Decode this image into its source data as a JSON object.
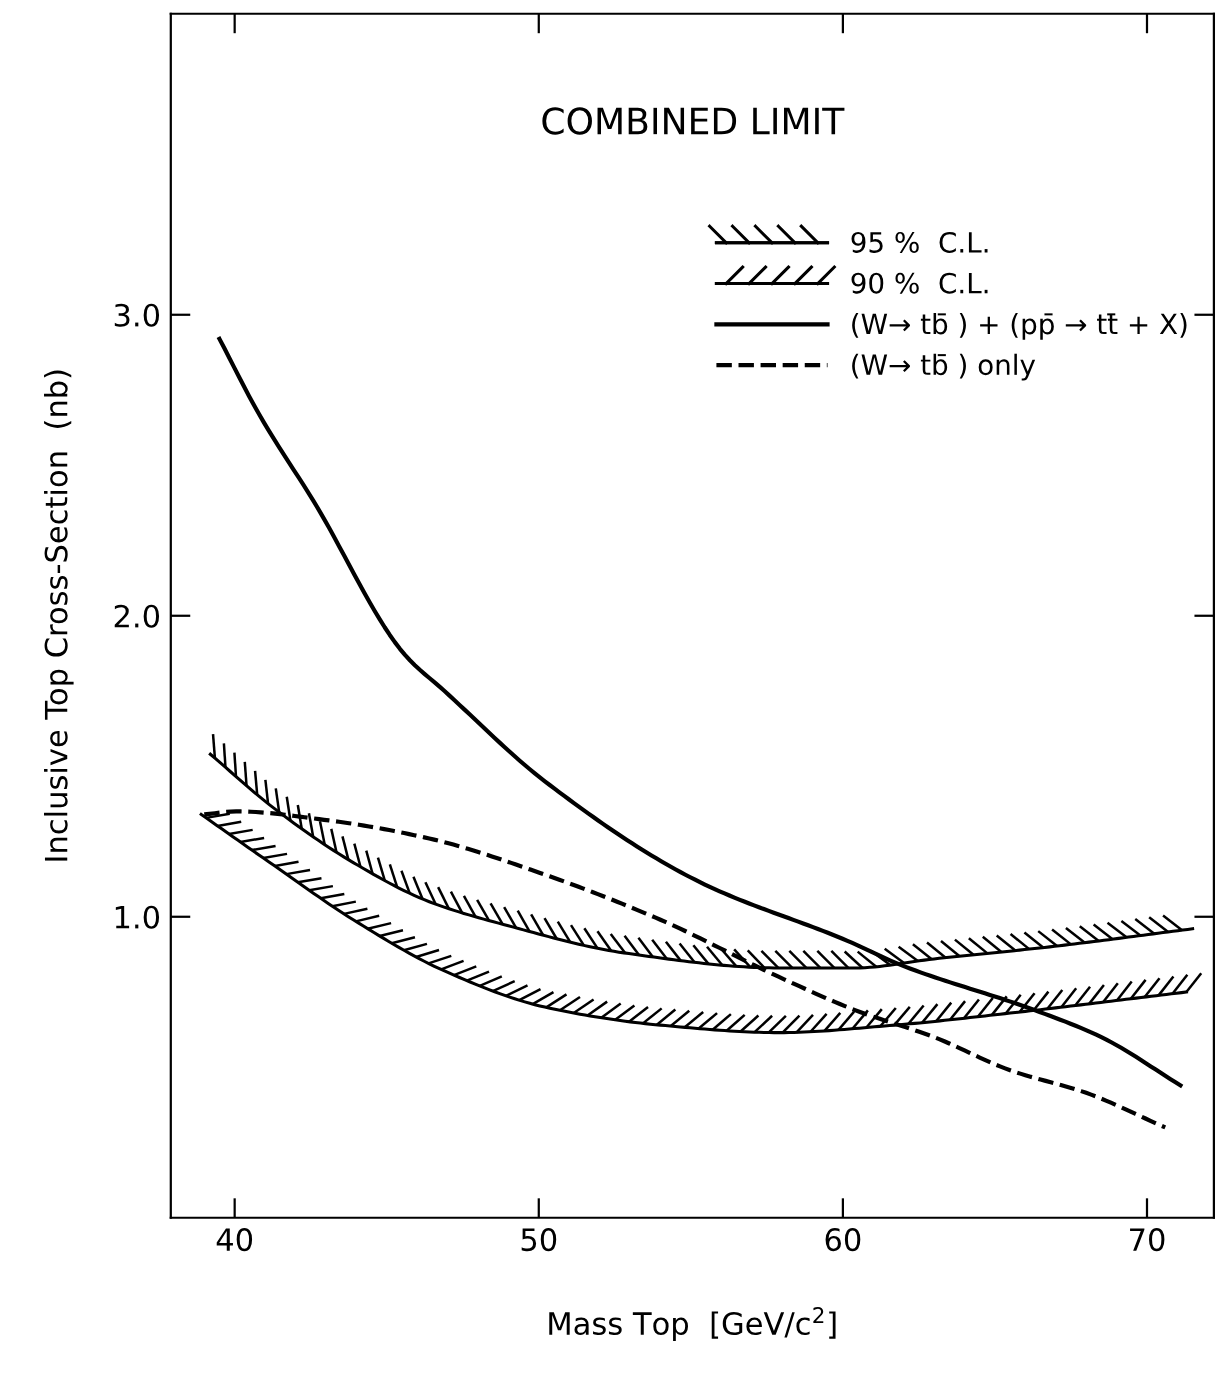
{
  "chart_data": {
    "type": "line",
    "title": "COMBINED LIMIT",
    "xlabel": "Mass Top  [GeV/c$^{2}$]",
    "ylabel": "Inclusive Top Cross-Section  (nb)",
    "xlim": [
      37.9,
      72.2
    ],
    "ylim": [
      0,
      4.0
    ],
    "xticks": [
      40,
      50,
      60,
      70
    ],
    "yticks": [
      {
        "value": 1,
        "label": "1.0"
      },
      {
        "value": 2,
        "label": "2.0"
      },
      {
        "value": 3,
        "label": "3.0"
      }
    ],
    "grid": false,
    "legend": "top right",
    "marker": "none",
    "series": [
      {
        "name": "95 %  C.L.",
        "color": "#000000",
        "line_style": "solid",
        "x": [
          39.2,
          41.3,
          43.9,
          46.4,
          49.0,
          52.8,
          57.9,
          60.4,
          63.0,
          66.8,
          71.5
        ],
        "values": [
          1.54,
          1.36,
          1.18,
          1.05,
          0.97,
          0.88,
          0.83,
          0.83,
          0.86,
          0.9,
          0.96
        ]
      },
      {
        "name": "90 %  C.L.",
        "color": "#000000",
        "line_style": "solid",
        "x": [
          38.9,
          41.3,
          43.9,
          46.9,
          50.2,
          54.0,
          57.9,
          61.7,
          65.5,
          71.3
        ],
        "values": [
          1.34,
          1.17,
          0.99,
          0.82,
          0.7,
          0.64,
          0.615,
          0.64,
          0.68,
          0.75
        ]
      },
      {
        "name": "(W→ tb̄ ) + (pp̄ → tt̄ + X)",
        "color": "#000000",
        "line_style": "solid",
        "x": [
          39.5,
          40.8,
          42.6,
          45.6,
          46.9,
          50.2,
          55.3,
          60.15,
          61.9,
          66.3,
          68.5,
          71.1
        ],
        "values": [
          2.92,
          2.67,
          2.38,
          1.87,
          1.75,
          1.45,
          1.115,
          0.92,
          0.84,
          0.69,
          0.6,
          0.44
        ]
      },
      {
        "name": "(W→ tb̄ ) only",
        "color": "#000000",
        "line_style": "dashed",
        "x": [
          39.0,
          40.05,
          43.1,
          46.4,
          50.2,
          54.0,
          57.9,
          60.4,
          63.0,
          65.5,
          68.0,
          70.6
        ],
        "values": [
          1.34,
          1.35,
          1.32,
          1.26,
          1.14,
          0.99,
          0.8,
          0.69,
          0.6,
          0.49,
          0.415,
          0.3
        ]
      }
    ]
  }
}
